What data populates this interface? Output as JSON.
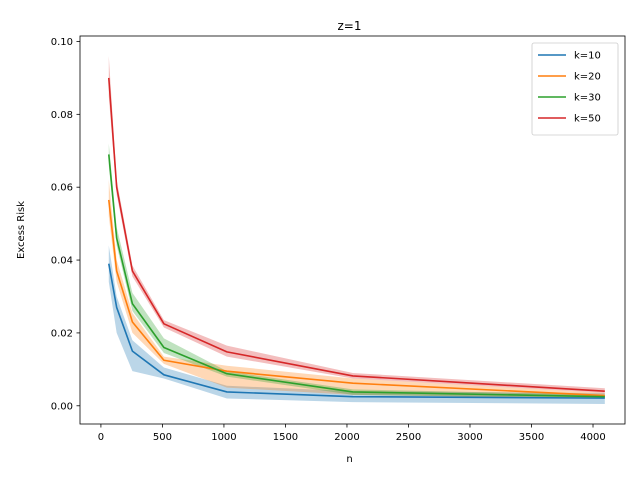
{
  "chart_data": {
    "type": "line",
    "title": "z=1",
    "xlabel": "n",
    "ylabel": "Excess Risk",
    "xlim": [
      -170,
      4260
    ],
    "ylim": [
      -0.005,
      0.1015
    ],
    "xticks": [
      0,
      500,
      1000,
      1500,
      2000,
      2500,
      3000,
      3500,
      4000
    ],
    "xtick_labels": [
      "0",
      "500",
      "1000",
      "1500",
      "2000",
      "2500",
      "3000",
      "3500",
      "4000"
    ],
    "yticks": [
      0.0,
      0.02,
      0.04,
      0.06,
      0.08,
      0.1
    ],
    "ytick_labels": [
      "0.00",
      "0.02",
      "0.04",
      "0.06",
      "0.08",
      "0.10"
    ],
    "grid": false,
    "legend_position": "top-right",
    "x": [
      64,
      128,
      256,
      512,
      1024,
      2048,
      4096
    ],
    "series": [
      {
        "name": "k=10",
        "color": "#1f77b4",
        "values": [
          0.039,
          0.027,
          0.015,
          0.0085,
          0.0038,
          0.0025,
          0.0021
        ],
        "lower": [
          0.034,
          0.02,
          0.0095,
          0.0075,
          0.002,
          0.001,
          0.0005
        ],
        "upper": [
          0.044,
          0.03,
          0.018,
          0.0105,
          0.0055,
          0.004,
          0.0035
        ]
      },
      {
        "name": "k=20",
        "color": "#ff7f0e",
        "values": [
          0.0565,
          0.037,
          0.023,
          0.0125,
          0.0095,
          0.0062,
          0.0028
        ],
        "lower": [
          0.052,
          0.034,
          0.02,
          0.0115,
          0.005,
          0.003,
          0.002
        ],
        "upper": [
          0.062,
          0.04,
          0.0255,
          0.0135,
          0.011,
          0.0075,
          0.0035
        ]
      },
      {
        "name": "k=30",
        "color": "#2ca02c",
        "values": [
          0.069,
          0.046,
          0.028,
          0.016,
          0.0088,
          0.0038,
          0.0025
        ],
        "lower": [
          0.066,
          0.044,
          0.026,
          0.0145,
          0.008,
          0.003,
          0.002
        ],
        "upper": [
          0.072,
          0.049,
          0.031,
          0.0185,
          0.0095,
          0.0045,
          0.003
        ]
      },
      {
        "name": "k=50",
        "color": "#d62728",
        "values": [
          0.09,
          0.06,
          0.037,
          0.0225,
          0.0148,
          0.0082,
          0.004
        ],
        "lower": [
          0.085,
          0.058,
          0.0355,
          0.0215,
          0.0135,
          0.0075,
          0.0035
        ],
        "upper": [
          0.096,
          0.062,
          0.0385,
          0.0235,
          0.0165,
          0.009,
          0.0048
        ]
      }
    ]
  }
}
